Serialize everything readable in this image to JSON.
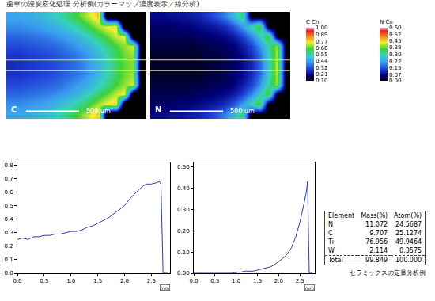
{
  "title": "歯車の浸炭窒化処理 分析例(カラーマップ濃度表示／線分析)",
  "chart_data": [
    {
      "type": "heatmap",
      "label": "C",
      "scale_bar": "500 um",
      "colorbar_title": "C Cn",
      "tick_labels": false,
      "zlim": [
        0.1,
        1.0
      ],
      "colorbar_ticks": [
        {
          "value": 1.0,
          "label": "1.00"
        },
        0.89,
        0.77,
        0.66,
        0.55,
        0.44,
        0.32,
        0.21,
        {
          "value": 0.1,
          "label": "0.10"
        }
      ],
      "z": [
        [
          0.44,
          0.44,
          0.45,
          0.47,
          0.49,
          0.52,
          0.56,
          0.61,
          0.67,
          0.73,
          0.79,
          0,
          0,
          0,
          0,
          0
        ],
        [
          0.4,
          0.4,
          0.41,
          0.42,
          0.44,
          0.46,
          0.49,
          0.53,
          0.58,
          0.64,
          0.7,
          0.75,
          0.78,
          0,
          0,
          0
        ],
        [
          0.35,
          0.35,
          0.36,
          0.37,
          0.38,
          0.4,
          0.42,
          0.45,
          0.49,
          0.54,
          0.6,
          0.66,
          0.72,
          0.76,
          0,
          0
        ],
        [
          0.31,
          0.31,
          0.32,
          0.33,
          0.34,
          0.35,
          0.37,
          0.4,
          0.43,
          0.47,
          0.52,
          0.58,
          0.64,
          0.69,
          0.73,
          0
        ],
        [
          0.28,
          0.28,
          0.29,
          0.3,
          0.31,
          0.32,
          0.34,
          0.36,
          0.39,
          0.43,
          0.48,
          0.54,
          0.61,
          0.67,
          0.7,
          0
        ],
        [
          0.26,
          0.27,
          0.28,
          0.29,
          0.3,
          0.31,
          0.33,
          0.35,
          0.38,
          0.42,
          0.47,
          0.53,
          0.6,
          0.66,
          0.68,
          0
        ],
        [
          0.28,
          0.28,
          0.29,
          0.3,
          0.31,
          0.32,
          0.34,
          0.36,
          0.39,
          0.43,
          0.48,
          0.54,
          0.61,
          0.67,
          0.7,
          0
        ],
        [
          0.31,
          0.31,
          0.32,
          0.33,
          0.34,
          0.35,
          0.37,
          0.4,
          0.43,
          0.47,
          0.52,
          0.58,
          0.64,
          0.69,
          0.73,
          0
        ],
        [
          0.35,
          0.35,
          0.36,
          0.37,
          0.38,
          0.4,
          0.42,
          0.45,
          0.49,
          0.54,
          0.6,
          0.66,
          0.72,
          0.76,
          0,
          0
        ],
        [
          0.4,
          0.4,
          0.41,
          0.42,
          0.44,
          0.46,
          0.49,
          0.53,
          0.58,
          0.64,
          0.7,
          0.75,
          0.78,
          0,
          0,
          0
        ],
        [
          0.44,
          0.44,
          0.45,
          0.47,
          0.49,
          0.52,
          0.56,
          0.61,
          0.67,
          0.73,
          0.79,
          0,
          0,
          0,
          0,
          0
        ]
      ]
    },
    {
      "type": "heatmap",
      "label": "N",
      "scale_bar": "500 um",
      "colorbar_title": "N Cn",
      "tick_labels": false,
      "zlim": [
        0.0,
        0.6
      ],
      "colorbar_ticks": [
        {
          "value": 0.6,
          "label": "0.60"
        },
        0.52,
        0.45,
        0.38,
        {
          "value": 0.3,
          "label": "0.30"
        },
        0.22,
        0.15,
        0.07,
        {
          "value": 0,
          "label": "0.00"
        }
      ],
      "z": [
        [
          0.07,
          0.07,
          0.08,
          0.08,
          0.09,
          0.1,
          0.12,
          0.15,
          0.19,
          0.25,
          0.33,
          0,
          0,
          0,
          0,
          0
        ],
        [
          0.05,
          0.05,
          0.05,
          0.06,
          0.06,
          0.07,
          0.08,
          0.09,
          0.11,
          0.15,
          0.21,
          0.29,
          0.37,
          0,
          0,
          0
        ],
        [
          0.04,
          0.04,
          0.04,
          0.04,
          0.04,
          0.05,
          0.05,
          0.06,
          0.07,
          0.09,
          0.13,
          0.19,
          0.27,
          0.38,
          0,
          0
        ],
        [
          0.03,
          0.03,
          0.03,
          0.03,
          0.03,
          0.03,
          0.04,
          0.04,
          0.05,
          0.06,
          0.09,
          0.13,
          0.2,
          0.3,
          0.4,
          0
        ],
        [
          0.02,
          0.02,
          0.02,
          0.02,
          0.02,
          0.02,
          0.03,
          0.03,
          0.04,
          0.05,
          0.07,
          0.11,
          0.17,
          0.28,
          0.41,
          0
        ],
        [
          0.02,
          0.02,
          0.02,
          0.02,
          0.02,
          0.02,
          0.03,
          0.03,
          0.04,
          0.05,
          0.07,
          0.1,
          0.16,
          0.27,
          0.42,
          0
        ],
        [
          0.02,
          0.02,
          0.02,
          0.02,
          0.02,
          0.02,
          0.03,
          0.03,
          0.04,
          0.05,
          0.07,
          0.11,
          0.17,
          0.28,
          0.41,
          0
        ],
        [
          0.03,
          0.03,
          0.03,
          0.03,
          0.03,
          0.03,
          0.04,
          0.04,
          0.05,
          0.06,
          0.09,
          0.13,
          0.2,
          0.3,
          0.4,
          0
        ],
        [
          0.04,
          0.04,
          0.04,
          0.04,
          0.04,
          0.05,
          0.05,
          0.06,
          0.07,
          0.09,
          0.13,
          0.19,
          0.27,
          0.38,
          0,
          0
        ],
        [
          0.05,
          0.05,
          0.05,
          0.06,
          0.06,
          0.07,
          0.08,
          0.09,
          0.11,
          0.15,
          0.21,
          0.29,
          0.37,
          0,
          0,
          0
        ],
        [
          0.07,
          0.07,
          0.08,
          0.08,
          0.09,
          0.1,
          0.12,
          0.15,
          0.19,
          0.25,
          0.33,
          0,
          0,
          0,
          0,
          0
        ]
      ]
    },
    {
      "type": "line",
      "xlabel": "mm",
      "x": [
        0,
        0.1,
        0.2,
        0.3,
        0.4,
        0.5,
        0.6,
        0.7,
        0.8,
        0.9,
        1.0,
        1.1,
        1.2,
        1.3,
        1.4,
        1.5,
        1.6,
        1.7,
        1.8,
        1.9,
        2.0,
        2.1,
        2.2,
        2.3,
        2.4,
        2.5,
        2.6,
        2.65,
        2.68,
        2.7,
        2.72,
        2.8
      ],
      "series": [
        {
          "color": "#2a3f9f",
          "values": [
            0.25,
            0.26,
            0.25,
            0.27,
            0.27,
            0.28,
            0.28,
            0.29,
            0.29,
            0.3,
            0.31,
            0.31,
            0.32,
            0.34,
            0.35,
            0.37,
            0.39,
            0.41,
            0.44,
            0.47,
            0.5,
            0.55,
            0.59,
            0.63,
            0.66,
            0.66,
            0.67,
            0.68,
            0.66,
            0.3,
            0.0,
            0.0
          ]
        }
      ],
      "xlim": [
        0,
        2.85
      ],
      "ylim": [
        0,
        0.82
      ],
      "xticks": [
        {
          "value": 0,
          "label": "0.0"
        },
        0.5,
        {
          "value": 1.0,
          "label": "1.0"
        },
        1.5,
        {
          "value": 2.0,
          "label": "2.0"
        },
        2.5
      ],
      "yticks": [
        {
          "value": 0,
          "label": "0.0"
        },
        0.1,
        0.2,
        0.3,
        0.4,
        0.5,
        0.6,
        0.7,
        0.8
      ],
      "grid": false
    },
    {
      "type": "line",
      "xlabel": "mm",
      "x": [
        0,
        0.1,
        0.2,
        0.3,
        0.4,
        0.5,
        0.6,
        0.7,
        0.8,
        0.9,
        1.0,
        1.1,
        1.2,
        1.3,
        1.4,
        1.5,
        1.6,
        1.7,
        1.8,
        1.9,
        2.0,
        2.1,
        2.2,
        2.3,
        2.4,
        2.5,
        2.6,
        2.65,
        2.68,
        2.7,
        2.72,
        2.8
      ],
      "series": [
        {
          "color": "#2a3f9f",
          "values": [
            0,
            0,
            0,
            0,
            0,
            0,
            0,
            0,
            0,
            0,
            0.005,
            0.005,
            0.01,
            0.01,
            0.01,
            0.015,
            0.02,
            0.025,
            0.03,
            0.04,
            0.055,
            0.07,
            0.09,
            0.12,
            0.17,
            0.24,
            0.33,
            0.38,
            0.43,
            0.2,
            0.0,
            0.0
          ]
        }
      ],
      "xlim": [
        0,
        2.85
      ],
      "ylim": [
        0,
        0.52
      ],
      "xticks": [
        {
          "value": 0,
          "label": "0.0"
        },
        0.5,
        {
          "value": 1.0,
          "label": "1.0"
        },
        1.5,
        {
          "value": 2.0,
          "label": "2.0"
        },
        2.5
      ],
      "yticks": [
        {
          "value": 0,
          "label": "0.00"
        },
        {
          "value": 0.1,
          "label": "0.10"
        },
        {
          "value": 0.2,
          "label": "0.20"
        },
        {
          "value": 0.3,
          "label": "0.30"
        },
        {
          "value": 0.4,
          "label": "0.40"
        },
        {
          "value": 0.5,
          "label": "0.50"
        }
      ],
      "grid": false
    }
  ],
  "table": {
    "header": [
      "Element",
      "Mass(%)",
      "Atom(%)"
    ],
    "rows": [
      [
        "N",
        "11.072",
        "24.5687"
      ],
      [
        "C",
        "9.707",
        "25.1274"
      ],
      [
        "Ti",
        "76.956",
        "49.9464"
      ],
      [
        "W",
        "2.114",
        "0.3575"
      ]
    ],
    "total": [
      "Total",
      "99.849",
      "100.000"
    ],
    "caption": "セラミックスの定量分析例"
  }
}
